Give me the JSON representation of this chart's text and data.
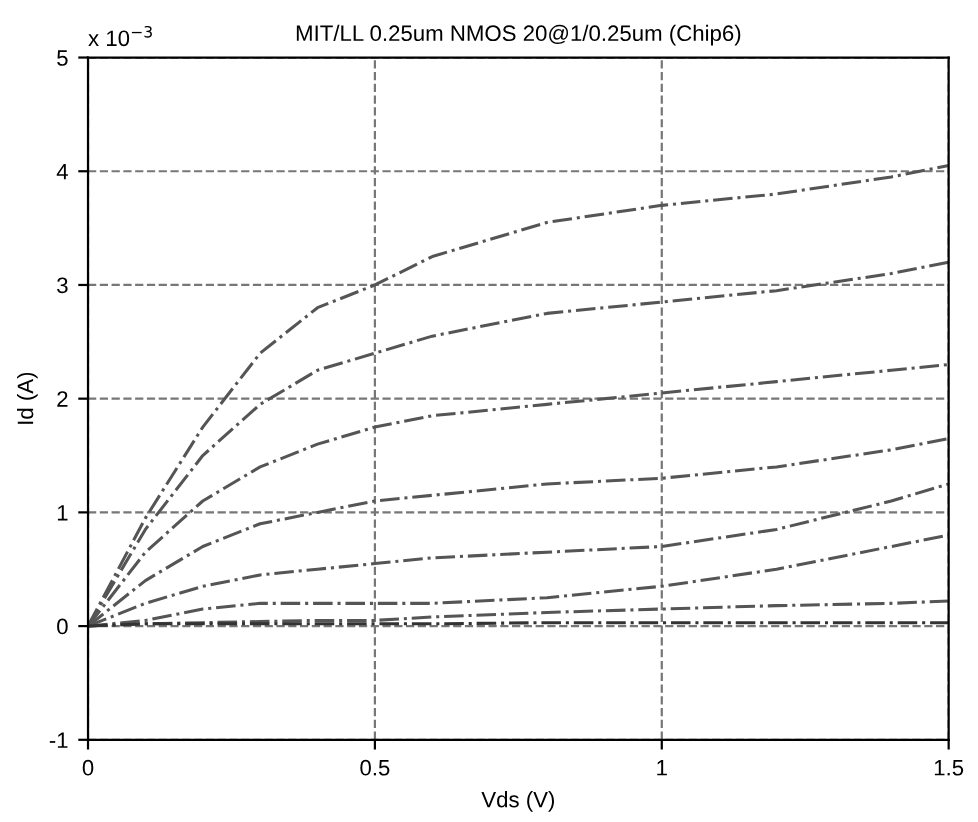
{
  "chart_data": {
    "type": "line",
    "title": "MIT/LL 0.25um NMOS 20@1/0.25um (Chip6)",
    "xlabel": "Vds (V)",
    "ylabel": "Id (A)",
    "annotations": [
      "x 10$^{−3}$"
    ],
    "x": [
      0,
      0.1,
      0.2,
      0.3,
      0.4,
      0.5,
      0.6,
      0.8,
      1.0,
      1.2,
      1.4,
      1.5
    ],
    "series": [
      {
        "color": "#555555",
        "values": [
          0,
          0.95,
          1.75,
          2.4,
          2.8,
          3.0,
          3.25,
          3.55,
          3.7,
          3.8,
          3.95,
          4.05
        ]
      },
      {
        "color": "#555555",
        "values": [
          0,
          0.85,
          1.5,
          1.95,
          2.25,
          2.4,
          2.55,
          2.75,
          2.85,
          2.95,
          3.1,
          3.2
        ]
      },
      {
        "color": "#555555",
        "values": [
          0,
          0.65,
          1.1,
          1.4,
          1.6,
          1.75,
          1.85,
          1.95,
          2.05,
          2.15,
          2.25,
          2.3
        ]
      },
      {
        "color": "#555555",
        "values": [
          0,
          0.4,
          0.7,
          0.9,
          1.0,
          1.1,
          1.15,
          1.25,
          1.3,
          1.4,
          1.55,
          1.65
        ]
      },
      {
        "color": "#555555",
        "values": [
          0,
          0.2,
          0.35,
          0.45,
          0.5,
          0.55,
          0.6,
          0.65,
          0.7,
          0.85,
          1.1,
          1.25
        ]
      },
      {
        "color": "#555555",
        "values": [
          0,
          0.05,
          0.15,
          0.2,
          0.2,
          0.2,
          0.2,
          0.25,
          0.35,
          0.5,
          0.7,
          0.8
        ]
      },
      {
        "color": "#555555",
        "values": [
          0,
          0.02,
          0.03,
          0.04,
          0.05,
          0.05,
          0.08,
          0.12,
          0.15,
          0.18,
          0.2,
          0.22
        ]
      },
      {
        "color": "#333333",
        "values": [
          0,
          0.02,
          0.02,
          0.02,
          0.02,
          0.02,
          0.02,
          0.03,
          0.03,
          0.03,
          0.03,
          0.03
        ]
      }
    ],
    "xlim": [
      0,
      1.5
    ],
    "xticks": [
      0,
      0.5,
      1,
      1.5
    ],
    "ylim": [
      -1,
      5
    ],
    "yticks": [
      -1,
      0,
      1,
      2,
      3,
      4,
      5
    ],
    "grid": true,
    "line_style": "dashed",
    "marker": "none"
  }
}
